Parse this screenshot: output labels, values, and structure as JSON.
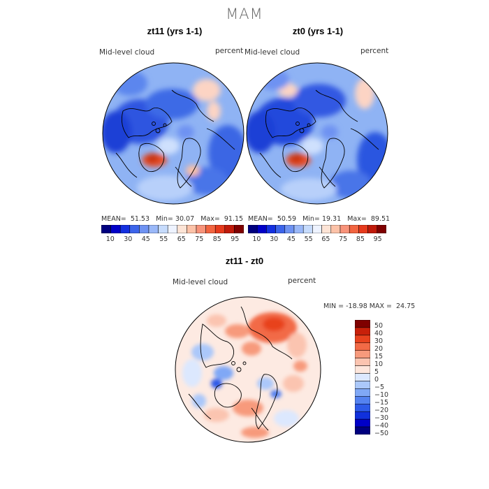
{
  "figure": {
    "title": "MAM",
    "variable": "Mid-level cloud",
    "units": "percent"
  },
  "panels": [
    {
      "title": "zt11 (yrs 1-1)",
      "mean_label": "MEAN=",
      "mean": "51.53",
      "min_label": "Min=",
      "min": "30.07",
      "max_label": "Max=",
      "max": "91.15"
    },
    {
      "title": "zt0 (yrs 1-1)",
      "mean_label": "MEAN=",
      "mean": "50.59",
      "min_label": "Min=",
      "min": "19.31",
      "max_label": "Max=",
      "max": "89.51"
    }
  ],
  "diff": {
    "title": "zt11 - zt0",
    "min_label": "MIN =",
    "min": "-18.98",
    "max_label": "MAX =",
    "max": "24.75"
  },
  "abs_colorbar": {
    "colors": [
      "#00007f",
      "#0000c8",
      "#1430e0",
      "#3c64ea",
      "#6e92f2",
      "#9ab8f8",
      "#c6dbfc",
      "#eef3ff",
      "#fde4d6",
      "#fcc2a8",
      "#f8937a",
      "#f26440",
      "#e63a1c",
      "#c01a0a",
      "#7f0000"
    ],
    "tick_labels": [
      "10",
      "30",
      "45",
      "55",
      "65",
      "75",
      "85",
      "95"
    ]
  },
  "diff_colorbar": {
    "colors": [
      "#00007f",
      "#0000c8",
      "#1030dc",
      "#2d5ae8",
      "#5482f0",
      "#80a8f6",
      "#abc8fa",
      "#dce8fe",
      "#fde6dc",
      "#fbc4b0",
      "#f79a7c",
      "#f26a46",
      "#e8421e",
      "#c8200a",
      "#7f0000"
    ],
    "tick_labels": [
      "50",
      "40",
      "30",
      "20",
      "15",
      "10",
      "5",
      "0",
      "−5",
      "−10",
      "−15",
      "−20",
      "−30",
      "−40",
      "−50"
    ]
  }
}
